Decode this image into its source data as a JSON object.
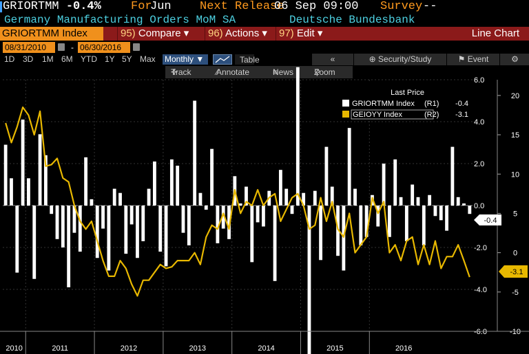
{
  "header": {
    "ticker": "GRIORTMM",
    "last_value": "-0.4%",
    "for_label": "For",
    "for_value": "Jun",
    "next_release_label": "Next Release",
    "next_release_value": "06 Sep 09:00",
    "survey_label": "Survey",
    "survey_value": "--",
    "description": "Germany Manufacturing Orders MoM SA",
    "source": "Deutsche Bundesbank"
  },
  "toolbar": {
    "security": "GRIORTMM Index",
    "compare_num": "95)",
    "compare": "Compare",
    "actions_num": "96)",
    "actions": "Actions",
    "edit_num": "97)",
    "edit": "Edit",
    "chart_type": "Line Chart"
  },
  "range": {
    "start_date": "08/31/2010",
    "end_date": "06/30/2016",
    "separator": "-",
    "periods": [
      "1D",
      "3D",
      "1M",
      "6M",
      "YTD",
      "1Y",
      "5Y",
      "Max"
    ],
    "frequency": "Monthly",
    "table_label": "Table",
    "nav_back": "«",
    "security_study": "Security/Study",
    "event": "Event"
  },
  "tools": {
    "track": "Track",
    "annotate": "Annotate",
    "news": "News",
    "zoom": "Zoom"
  },
  "chart_data": {
    "type": "bar",
    "legend_title": "Last Price",
    "series": [
      {
        "name": "GRIORTMM Index",
        "axis_tag": "(R1)",
        "last": "-0.4",
        "type": "bar",
        "color": "#ffffff",
        "values": [
          2.9,
          1.3,
          -3.2,
          4.1,
          1.3,
          -3.5,
          3.4,
          2.4,
          -0.4,
          -1.6,
          -2.0,
          -3.9,
          -1.3,
          -2.2,
          2.3,
          0.3,
          -2.5,
          -1.1,
          -3.1,
          0.8,
          0.6,
          -2.3,
          -0.9,
          -2.5,
          -1.7,
          0.8,
          2.1,
          -2.2,
          -2.9,
          2.2,
          1.9,
          -1.3,
          -1.9,
          5.0,
          0.6,
          -0.2,
          2.7,
          -1.8,
          -1.1,
          -1.6,
          1.4,
          0.1,
          0.9,
          -2.7,
          -0.8,
          -1.0,
          0.7,
          -3.6,
          1.7,
          0.8,
          -0.4,
          6.6,
          0.6,
          -7.4,
          0.7,
          -2.6,
          2.8,
          0.9,
          -2.4,
          -3.1,
          3.7,
          0.8,
          -1.9,
          -1.5,
          0.5,
          -1.0,
          2.0,
          -1.5,
          2.2,
          0.4,
          -1.7,
          1.0,
          0.4,
          -1.9,
          0.5,
          -0.5,
          -0.7,
          -1.2,
          2.8,
          0.4,
          0.1,
          -0.4
        ]
      },
      {
        "name": "GEIOYY Index",
        "axis_tag": "(R2)",
        "last": "-3.1",
        "type": "line",
        "color": "#e8b800",
        "values": [
          16.5,
          14.0,
          16.0,
          18.5,
          17.5,
          15.0,
          18.0,
          11.0,
          11.2,
          12.0,
          9.5,
          9.0,
          6.0,
          4.0,
          3.0,
          4.0,
          1.5,
          -1.0,
          -3.0,
          -3.0,
          -1.0,
          -2.0,
          -4.0,
          -5.5,
          -3.5,
          -3.5,
          -2.5,
          -1.5,
          -2.0,
          -1.8,
          -1.0,
          -1.0,
          -1.0,
          0.0,
          -1.5,
          2.0,
          3.5,
          3.0,
          5.0,
          3.0,
          8.0,
          5.0,
          6.5,
          6.0,
          8.0,
          6.0,
          7.0,
          7.5,
          4.0,
          5.5,
          7.0,
          7.5,
          6.0,
          3.0,
          3.5,
          7.0,
          4.0,
          6.5,
          3.0,
          2.0,
          5.0,
          0.0,
          1.0,
          2.0,
          7.0,
          5.0,
          6.5,
          0.0,
          1.0,
          -1.0,
          1.5,
          2.0,
          -1.5,
          1.0,
          -1.5,
          1.5,
          -2.0,
          -0.5,
          -0.5,
          1.0,
          -1.0,
          -3.1
        ]
      }
    ],
    "x_start": "2010-09",
    "x_end": "2016-06",
    "x_ticks": [
      "2010",
      "2011",
      "2012",
      "2013",
      "2014",
      "2015",
      "2016"
    ],
    "left_axis_ticks": [
      "6.0",
      "4.0",
      "2.0",
      "0.0",
      "-2.0",
      "-4.0",
      "-6.0"
    ],
    "left_ylim": [
      -6,
      6
    ],
    "right_axis_ticks": [
      "20",
      "15",
      "10",
      "5",
      "0",
      "-5",
      "-10"
    ],
    "right_ylim": [
      -10,
      22
    ],
    "last_label_r1": "-0.4",
    "last_label_r2": "-3.1",
    "grid": true,
    "legend_position": "top-right"
  }
}
